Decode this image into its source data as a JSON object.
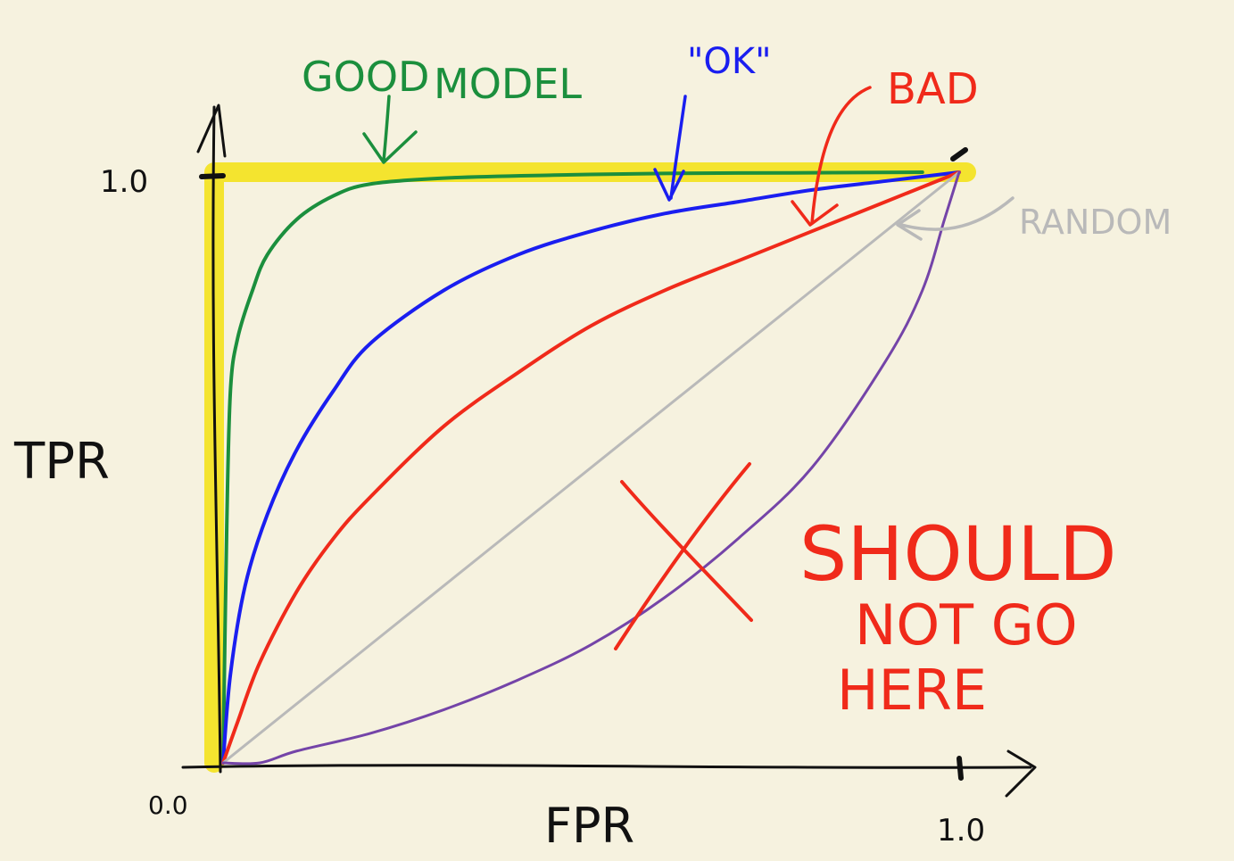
{
  "chart_data": {
    "type": "line",
    "title": "",
    "xlabel": "FPR",
    "ylabel": "TPR",
    "xlim": [
      0.0,
      1.0
    ],
    "ylim": [
      0.0,
      1.0
    ],
    "x_ticks": [
      {
        "value": 0.0,
        "label": "0.0"
      },
      {
        "value": 1.0,
        "label": "1.0"
      }
    ],
    "y_ticks": [
      {
        "value": 1.0,
        "label": "1.0"
      }
    ],
    "grid": false,
    "colors": {
      "background": "#f6f2df",
      "axis": "#111111",
      "highlight": "#f4e21c",
      "good": "#1b8f3d",
      "ok": "#1a1ef0",
      "bad": "#f02a1a",
      "random": "#b9b9b9",
      "worse": "#7444a8",
      "cross": "#f02a1a"
    },
    "series": [
      {
        "key": "good",
        "x": [
          0.0,
          0.005,
          0.01,
          0.02,
          0.04,
          0.06,
          0.1,
          0.15,
          0.2,
          0.3,
          0.45,
          0.6,
          0.8,
          0.95
        ],
        "y": [
          0.0,
          0.4,
          0.63,
          0.72,
          0.8,
          0.86,
          0.92,
          0.96,
          0.98,
          0.99,
          0.995,
          0.998,
          0.999,
          1.0
        ]
      },
      {
        "key": "ok",
        "x": [
          0.0,
          0.01,
          0.03,
          0.06,
          0.1,
          0.15,
          0.2,
          0.3,
          0.4,
          0.5,
          0.6,
          0.7,
          0.8,
          0.9,
          1.0
        ],
        "y": [
          0.0,
          0.15,
          0.3,
          0.42,
          0.53,
          0.63,
          0.71,
          0.8,
          0.86,
          0.9,
          0.93,
          0.95,
          0.97,
          0.985,
          1.0
        ]
      },
      {
        "key": "bad",
        "x": [
          0.0,
          0.02,
          0.05,
          0.1,
          0.15,
          0.2,
          0.3,
          0.4,
          0.5,
          0.6,
          0.7,
          0.8,
          0.9,
          1.0
        ],
        "y": [
          0.0,
          0.07,
          0.17,
          0.29,
          0.38,
          0.45,
          0.57,
          0.66,
          0.74,
          0.8,
          0.85,
          0.9,
          0.95,
          1.0
        ]
      },
      {
        "key": "random",
        "x": [
          0.0,
          1.0
        ],
        "y": [
          0.0,
          1.0
        ]
      },
      {
        "key": "worse",
        "x": [
          0.0,
          0.05,
          0.1,
          0.2,
          0.3,
          0.4,
          0.5,
          0.6,
          0.7,
          0.8,
          0.9,
          0.95,
          0.98,
          1.0
        ],
        "y": [
          0.0,
          0.0,
          0.02,
          0.05,
          0.09,
          0.14,
          0.2,
          0.28,
          0.38,
          0.5,
          0.68,
          0.8,
          0.92,
          1.0
        ]
      }
    ],
    "annotations": {
      "good_1": "GOOD",
      "good_2": "MODEL",
      "ok": "\"OK\"",
      "bad": "BAD",
      "random": "RANDOM",
      "should_1": "SHOULD",
      "should_2": "NOT GO",
      "should_3": "HERE"
    }
  }
}
